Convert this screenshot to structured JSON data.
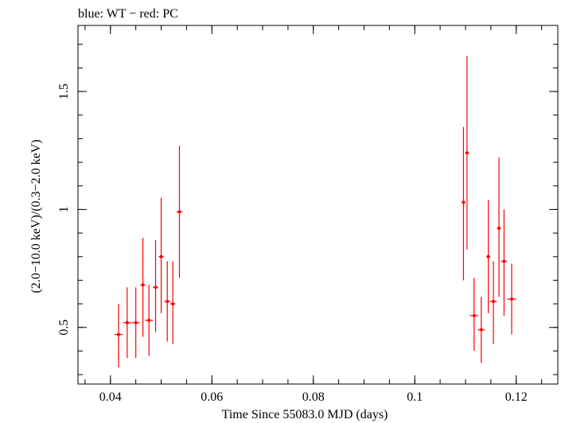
{
  "chart_data": {
    "type": "scatter",
    "title": "blue: WT − red: PC",
    "xlabel": "Time Since 55083.0 MJD (days)",
    "ylabel": "(2.0−10.0 keV)/(0.3−2.0 keV)",
    "xlim": [
      0.0336,
      0.1282
    ],
    "ylim": [
      0.26,
      1.78
    ],
    "x_ticks": [
      {
        "value": 0.04,
        "label": "0.04"
      },
      {
        "value": 0.06,
        "label": "0.06"
      },
      {
        "value": 0.08,
        "label": "0.08"
      },
      {
        "value": 0.1,
        "label": "0.1"
      },
      {
        "value": 0.12,
        "label": "0.12"
      }
    ],
    "y_ticks": [
      {
        "value": 0.5,
        "label": "0.5"
      },
      {
        "value": 1.0,
        "label": "1"
      },
      {
        "value": 1.5,
        "label": "1.5"
      }
    ],
    "x_minor_step": 0.005,
    "y_minor_step": 0.1,
    "series": [
      {
        "name": "PC",
        "color": "#ff0000",
        "points": [
          {
            "x": 0.0416,
            "xerr": 0.0008,
            "y": 0.47,
            "ylo": 0.33,
            "yhi": 0.6
          },
          {
            "x": 0.0433,
            "xerr": 0.0008,
            "y": 0.52,
            "ylo": 0.37,
            "yhi": 0.67
          },
          {
            "x": 0.045,
            "xerr": 0.0008,
            "y": 0.52,
            "ylo": 0.37,
            "yhi": 0.67
          },
          {
            "x": 0.0464,
            "xerr": 0.0005,
            "y": 0.68,
            "ylo": 0.46,
            "yhi": 0.88
          },
          {
            "x": 0.0476,
            "xerr": 0.0008,
            "y": 0.53,
            "ylo": 0.38,
            "yhi": 0.68
          },
          {
            "x": 0.0489,
            "xerr": 0.0005,
            "y": 0.67,
            "ylo": 0.48,
            "yhi": 0.87
          },
          {
            "x": 0.05,
            "xerr": 0.0005,
            "y": 0.8,
            "ylo": 0.56,
            "yhi": 1.05
          },
          {
            "x": 0.0512,
            "xerr": 0.0006,
            "y": 0.61,
            "ylo": 0.44,
            "yhi": 0.78
          },
          {
            "x": 0.0523,
            "xerr": 0.0005,
            "y": 0.6,
            "ylo": 0.43,
            "yhi": 0.78
          },
          {
            "x": 0.0536,
            "xerr": 0.0006,
            "y": 0.99,
            "ylo": 0.71,
            "yhi": 1.27
          },
          {
            "x": 0.1096,
            "xerr": 0.0004,
            "y": 1.03,
            "ylo": 0.7,
            "yhi": 1.35
          },
          {
            "x": 0.1103,
            "xerr": 0.0004,
            "y": 1.24,
            "ylo": 0.83,
            "yhi": 1.65
          },
          {
            "x": 0.1117,
            "xerr": 0.0008,
            "y": 0.55,
            "ylo": 0.4,
            "yhi": 0.71
          },
          {
            "x": 0.1131,
            "xerr": 0.0007,
            "y": 0.49,
            "ylo": 0.35,
            "yhi": 0.63
          },
          {
            "x": 0.1145,
            "xerr": 0.0004,
            "y": 0.8,
            "ylo": 0.56,
            "yhi": 1.04
          },
          {
            "x": 0.1155,
            "xerr": 0.0007,
            "y": 0.61,
            "ylo": 0.43,
            "yhi": 0.78
          },
          {
            "x": 0.1166,
            "xerr": 0.0004,
            "y": 0.92,
            "ylo": 0.63,
            "yhi": 1.22
          },
          {
            "x": 0.1176,
            "xerr": 0.0006,
            "y": 0.78,
            "ylo": 0.55,
            "yhi": 1.0
          },
          {
            "x": 0.1191,
            "xerr": 0.0009,
            "y": 0.62,
            "ylo": 0.47,
            "yhi": 0.77
          }
        ]
      }
    ]
  }
}
